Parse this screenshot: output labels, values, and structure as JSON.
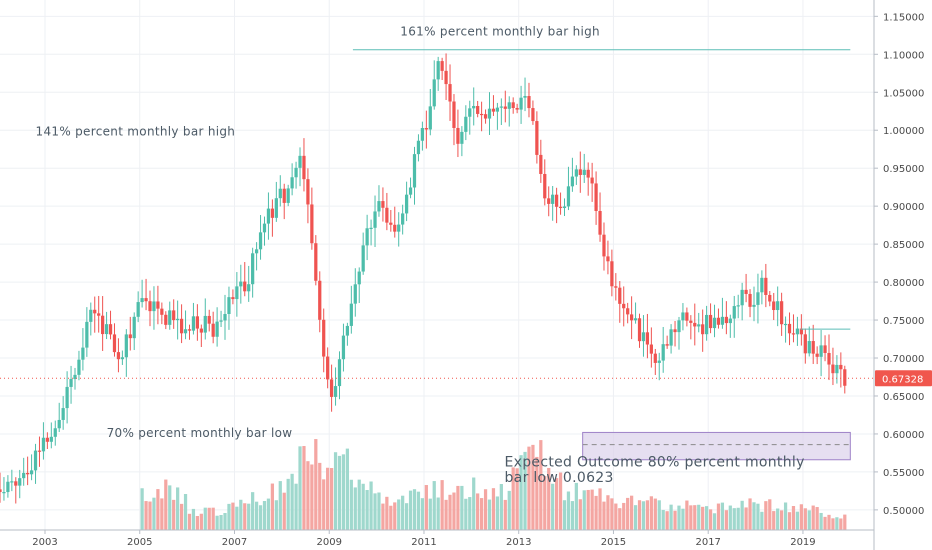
{
  "chart_data": {
    "type": "candlestick",
    "title": "",
    "x_range": [
      2002.05,
      2020.5
    ],
    "ylim": [
      0.4735,
      1.1715
    ],
    "x_tick_labels": [
      "2003",
      "2005",
      "2007",
      "2009",
      "2011",
      "2013",
      "2015",
      "2017",
      "2019"
    ],
    "x_tick_values": [
      2003,
      2005,
      2007,
      2009,
      2011,
      2013,
      2015,
      2017,
      2019
    ],
    "y_tick_labels": [
      "1.15000",
      "1.10000",
      "1.05000",
      "1.00000",
      "0.95000",
      "0.90000",
      "0.85000",
      "0.80000",
      "0.75000",
      "0.70000",
      "0.65000",
      "0.60000",
      "0.55000",
      "0.50000"
    ],
    "y_tick_values": [
      1.15,
      1.1,
      1.05,
      1.0,
      0.95,
      0.9,
      0.85,
      0.8,
      0.75,
      0.7,
      0.65,
      0.6,
      0.55,
      0.5
    ],
    "grid": true,
    "price_path": [
      [
        2002.1,
        0.527
      ],
      [
        2002.5,
        0.545
      ],
      [
        2003.0,
        0.593
      ],
      [
        2003.4,
        0.64
      ],
      [
        2003.8,
        0.725
      ],
      [
        2004.0,
        0.77
      ],
      [
        2004.3,
        0.735
      ],
      [
        2004.6,
        0.705
      ],
      [
        2004.9,
        0.755
      ],
      [
        2005.1,
        0.775
      ],
      [
        2005.5,
        0.76
      ],
      [
        2005.9,
        0.735
      ],
      [
        2006.2,
        0.752
      ],
      [
        2006.5,
        0.735
      ],
      [
        2006.8,
        0.76
      ],
      [
        2007.0,
        0.775
      ],
      [
        2007.3,
        0.81
      ],
      [
        2007.6,
        0.87
      ],
      [
        2007.9,
        0.905
      ],
      [
        2008.2,
        0.925
      ],
      [
        2008.4,
        0.965
      ],
      [
        2008.55,
        0.9
      ],
      [
        2008.7,
        0.81
      ],
      [
        2008.85,
        0.7
      ],
      [
        2009.0,
        0.65
      ],
      [
        2009.25,
        0.7
      ],
      [
        2009.55,
        0.8
      ],
      [
        2009.85,
        0.88
      ],
      [
        2010.1,
        0.905
      ],
      [
        2010.4,
        0.85
      ],
      [
        2010.6,
        0.9
      ],
      [
        2010.9,
        0.985
      ],
      [
        2011.1,
        1.02
      ],
      [
        2011.3,
        1.08
      ],
      [
        2011.5,
        1.06
      ],
      [
        2011.7,
        0.98
      ],
      [
        2011.9,
        1.02
      ],
      [
        2012.15,
        1.035
      ],
      [
        2012.5,
        1.02
      ],
      [
        2012.8,
        1.035
      ],
      [
        2013.1,
        1.04
      ],
      [
        2013.3,
        1.01
      ],
      [
        2013.55,
        0.92
      ],
      [
        2013.85,
        0.895
      ],
      [
        2014.2,
        0.935
      ],
      [
        2014.5,
        0.94
      ],
      [
        2014.75,
        0.86
      ],
      [
        2015.0,
        0.79
      ],
      [
        2015.3,
        0.77
      ],
      [
        2015.55,
        0.735
      ],
      [
        2015.8,
        0.7
      ],
      [
        2016.05,
        0.705
      ],
      [
        2016.3,
        0.745
      ],
      [
        2016.6,
        0.76
      ],
      [
        2016.9,
        0.74
      ],
      [
        2017.1,
        0.755
      ],
      [
        2017.4,
        0.745
      ],
      [
        2017.7,
        0.785
      ],
      [
        2017.95,
        0.77
      ],
      [
        2018.1,
        0.8
      ],
      [
        2018.4,
        0.775
      ],
      [
        2018.65,
        0.745
      ],
      [
        2018.9,
        0.725
      ],
      [
        2019.2,
        0.715
      ],
      [
        2019.5,
        0.695
      ],
      [
        2019.8,
        0.673
      ]
    ],
    "last_price": {
      "value": 0.67328,
      "label": "0.67328",
      "color": "#f0564d"
    },
    "colors": {
      "up": "#4dbdaa",
      "down": "#ef5350",
      "volume_up": "#9fd8cd",
      "volume_down": "#f4a6a2",
      "drawing_line": "#5bbeb6",
      "grid": "#eef0f4",
      "axis_text": "#4a4a4a"
    },
    "volume": {
      "start_year": 2005,
      "baseline_value": 0.478,
      "volume_profile": [
        [
          2005.0,
          0.4
        ],
        [
          2005.8,
          0.5
        ],
        [
          2006.1,
          0.2
        ],
        [
          2007.0,
          0.25
        ],
        [
          2007.8,
          0.45
        ],
        [
          2008.2,
          0.6
        ],
        [
          2008.6,
          1.0
        ],
        [
          2009.0,
          0.7
        ],
        [
          2009.3,
          0.85
        ],
        [
          2009.6,
          0.5
        ],
        [
          2010.3,
          0.35
        ],
        [
          2011.0,
          0.45
        ],
        [
          2012.0,
          0.5
        ],
        [
          2012.8,
          0.4
        ],
        [
          2013.0,
          0.8
        ],
        [
          2013.3,
          1.0
        ],
        [
          2013.6,
          0.8
        ],
        [
          2014.0,
          0.45
        ],
        [
          2015.0,
          0.35
        ],
        [
          2016.0,
          0.3
        ],
        [
          2017.0,
          0.25
        ],
        [
          2018.0,
          0.3
        ],
        [
          2019.0,
          0.25
        ],
        [
          2019.9,
          0.15
        ]
      ]
    },
    "drawings": [
      {
        "kind": "horizontal",
        "x0": 2009.5,
        "x1": 2020.0,
        "y": 1.106
      },
      {
        "kind": "horizontal",
        "x0": 2018.95,
        "x1": 2020.0,
        "y": 0.738
      },
      {
        "kind": "horizontal",
        "x0": 2002.05,
        "x1": 2020.5,
        "y": 0.67328,
        "style": "dotted"
      }
    ],
    "target_box": {
      "x0": 2014.35,
      "x1": 2020.0,
      "y_top": 0.602,
      "y_bottom": 0.566,
      "mid": 0.586,
      "fill": "#ddd3ec",
      "stroke": "#9e82c8"
    },
    "annotations": [
      {
        "id": "note-161",
        "text": "161% percent monthly bar high",
        "x": 2010.5,
        "y": 1.125,
        "size": 12
      },
      {
        "id": "note-141",
        "text": "141% percent monthly bar high",
        "x": 2002.8,
        "y": 0.993,
        "size": 12
      },
      {
        "id": "note-70",
        "text": "70% percent monthly bar low",
        "x": 2004.3,
        "y": 0.596,
        "size": 12
      },
      {
        "id": "note-80-line1",
        "text": "Expected Outcome 80% percent monthly",
        "x": 2012.7,
        "y": 0.557,
        "size": 14
      },
      {
        "id": "note-80-line2",
        "text": "bar low 0.0623",
        "x": 2012.7,
        "y": 0.537,
        "size": 14
      }
    ]
  }
}
